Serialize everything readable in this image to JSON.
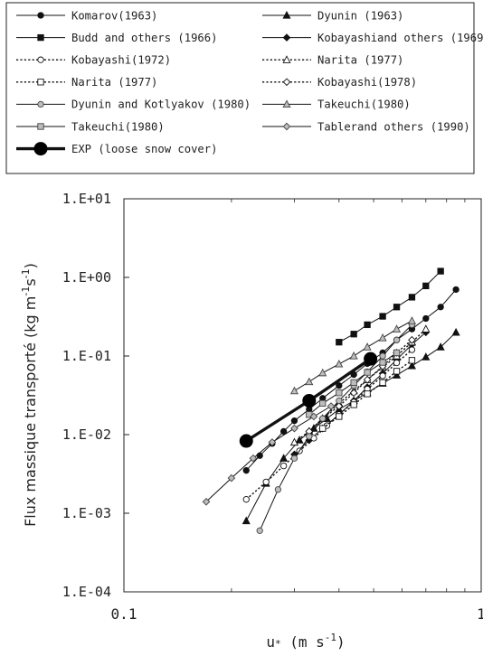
{
  "chart_data": {
    "type": "line",
    "scale": "log-log",
    "xlabel": "u* (m s-1)",
    "xlabel_parts": {
      "main": "u",
      "star": "*",
      "unit": " (m s",
      "sup": "-1",
      "close": ")"
    },
    "ylabel_parts": {
      "main": "Flux massique transporté  (kg m",
      "sup1": "-1",
      "mid": "s",
      "sup2": "-1",
      "close": ")"
    },
    "xlim": [
      0.1,
      1
    ],
    "ylim": [
      0.0001,
      10
    ],
    "x_ticks": [
      {
        "value": 0.1,
        "label": "0.1"
      },
      {
        "value": 1,
        "label": "1"
      }
    ],
    "y_ticks": [
      {
        "value": 10,
        "label": "1.E+01"
      },
      {
        "value": 1,
        "label": "1.E+00"
      },
      {
        "value": 0.1,
        "label": "1.E-01"
      },
      {
        "value": 0.01,
        "label": "1.E-02"
      },
      {
        "value": 0.001,
        "label": "1.E-03"
      },
      {
        "value": 0.0001,
        "label": "1.E-04"
      }
    ],
    "legend_position": "top",
    "series": [
      {
        "name": "Komarov(1963)",
        "marker": "circle-filled",
        "dash": "solid",
        "x": [
          0.22,
          0.24,
          0.26,
          0.28,
          0.3,
          0.33,
          0.36,
          0.4,
          0.44,
          0.48,
          0.53,
          0.58,
          0.64,
          0.7,
          0.77,
          0.85
        ],
        "y": [
          0.0035,
          0.0054,
          0.0077,
          0.011,
          0.015,
          0.021,
          0.029,
          0.042,
          0.058,
          0.08,
          0.11,
          0.16,
          0.22,
          0.3,
          0.42,
          0.7
        ]
      },
      {
        "name": "Dyunin (1963)",
        "marker": "triangle-filled",
        "dash": "solid",
        "x": [
          0.22,
          0.25,
          0.28,
          0.31,
          0.34,
          0.37,
          0.4,
          0.44,
          0.48,
          0.53,
          0.58,
          0.64,
          0.7,
          0.77,
          0.85
        ],
        "y": [
          0.0008,
          0.0024,
          0.005,
          0.0085,
          0.012,
          0.016,
          0.021,
          0.027,
          0.034,
          0.045,
          0.057,
          0.075,
          0.097,
          0.13,
          0.2
        ]
      },
      {
        "name": "Budd and others (1966)",
        "marker": "square-filled",
        "dash": "solid",
        "x": [
          0.4,
          0.44,
          0.48,
          0.53,
          0.58,
          0.64,
          0.7,
          0.77
        ],
        "y": [
          0.15,
          0.19,
          0.25,
          0.32,
          0.42,
          0.56,
          0.78,
          1.2
        ]
      },
      {
        "name": "Kobayashiand others (1969)",
        "marker": "diamond-filled",
        "dash": "solid",
        "x": [
          0.3,
          0.33,
          0.36,
          0.4,
          0.44,
          0.48,
          0.53,
          0.58,
          0.64,
          0.7
        ],
        "y": [
          0.0056,
          0.0085,
          0.012,
          0.018,
          0.027,
          0.04,
          0.06,
          0.09,
          0.14,
          0.2
        ]
      },
      {
        "name": "Kobayashi(1972)",
        "marker": "circle-open",
        "dash": "dotted",
        "x": [
          0.22,
          0.25,
          0.28,
          0.31,
          0.34,
          0.37,
          0.4,
          0.44,
          0.48,
          0.53,
          0.58,
          0.64
        ],
        "y": [
          0.0015,
          0.0025,
          0.004,
          0.0062,
          0.009,
          0.013,
          0.018,
          0.026,
          0.038,
          0.056,
          0.082,
          0.12
        ]
      },
      {
        "name": "Narita (1977)",
        "marker": "triangle-open",
        "dash": "dotted",
        "x": [
          0.3,
          0.33,
          0.36,
          0.4,
          0.44,
          0.48,
          0.53,
          0.58,
          0.64,
          0.7
        ],
        "y": [
          0.008,
          0.011,
          0.016,
          0.025,
          0.036,
          0.05,
          0.072,
          0.1,
          0.15,
          0.22
        ]
      },
      {
        "name": "Narita (1977)",
        "marker": "square-open",
        "dash": "dotted",
        "x": [
          0.36,
          0.4,
          0.44,
          0.48,
          0.53,
          0.58,
          0.64
        ],
        "y": [
          0.012,
          0.017,
          0.024,
          0.033,
          0.046,
          0.064,
          0.088
        ]
      },
      {
        "name": "Kobayashi(1978)",
        "marker": "diamond-open",
        "dash": "dotted",
        "x": [
          0.33,
          0.36,
          0.4,
          0.44,
          0.48,
          0.53,
          0.58,
          0.64
        ],
        "y": [
          0.011,
          0.016,
          0.023,
          0.034,
          0.05,
          0.074,
          0.11,
          0.16
        ]
      },
      {
        "name": "Dyunin and Kotlyakov (1980)",
        "marker": "circle-gray",
        "dash": "solid",
        "x": [
          0.24,
          0.27,
          0.3,
          0.33,
          0.36,
          0.4,
          0.44,
          0.48,
          0.53,
          0.58,
          0.64
        ],
        "y": [
          0.0006,
          0.002,
          0.005,
          0.0095,
          0.016,
          0.027,
          0.042,
          0.063,
          0.1,
          0.16,
          0.25
        ]
      },
      {
        "name": "Takeuchi(1980)",
        "marker": "triangle-gray",
        "dash": "solid",
        "x": [
          0.3,
          0.33,
          0.36,
          0.4,
          0.44,
          0.48,
          0.53,
          0.58,
          0.64
        ],
        "y": [
          0.036,
          0.047,
          0.061,
          0.079,
          0.1,
          0.13,
          0.17,
          0.22,
          0.28
        ]
      },
      {
        "name": "Takeuchi(1980)",
        "marker": "square-gray",
        "dash": "solid",
        "x": [
          0.33,
          0.36,
          0.4,
          0.44,
          0.48,
          0.53,
          0.58
        ],
        "y": [
          0.018,
          0.025,
          0.034,
          0.046,
          0.062,
          0.083,
          0.11
        ]
      },
      {
        "name": "Tablerand others (1990)",
        "marker": "diamond-gray",
        "dash": "solid",
        "x": [
          0.17,
          0.2,
          0.23,
          0.26,
          0.3,
          0.34,
          0.38
        ],
        "y": [
          0.0014,
          0.0028,
          0.005,
          0.008,
          0.012,
          0.017,
          0.023
        ]
      },
      {
        "name": "EXP (loose snow cover)",
        "marker": "circle-large",
        "dash": "bold",
        "x": [
          0.22,
          0.33,
          0.49
        ],
        "y": [
          0.0083,
          0.027,
          0.092
        ]
      }
    ]
  }
}
